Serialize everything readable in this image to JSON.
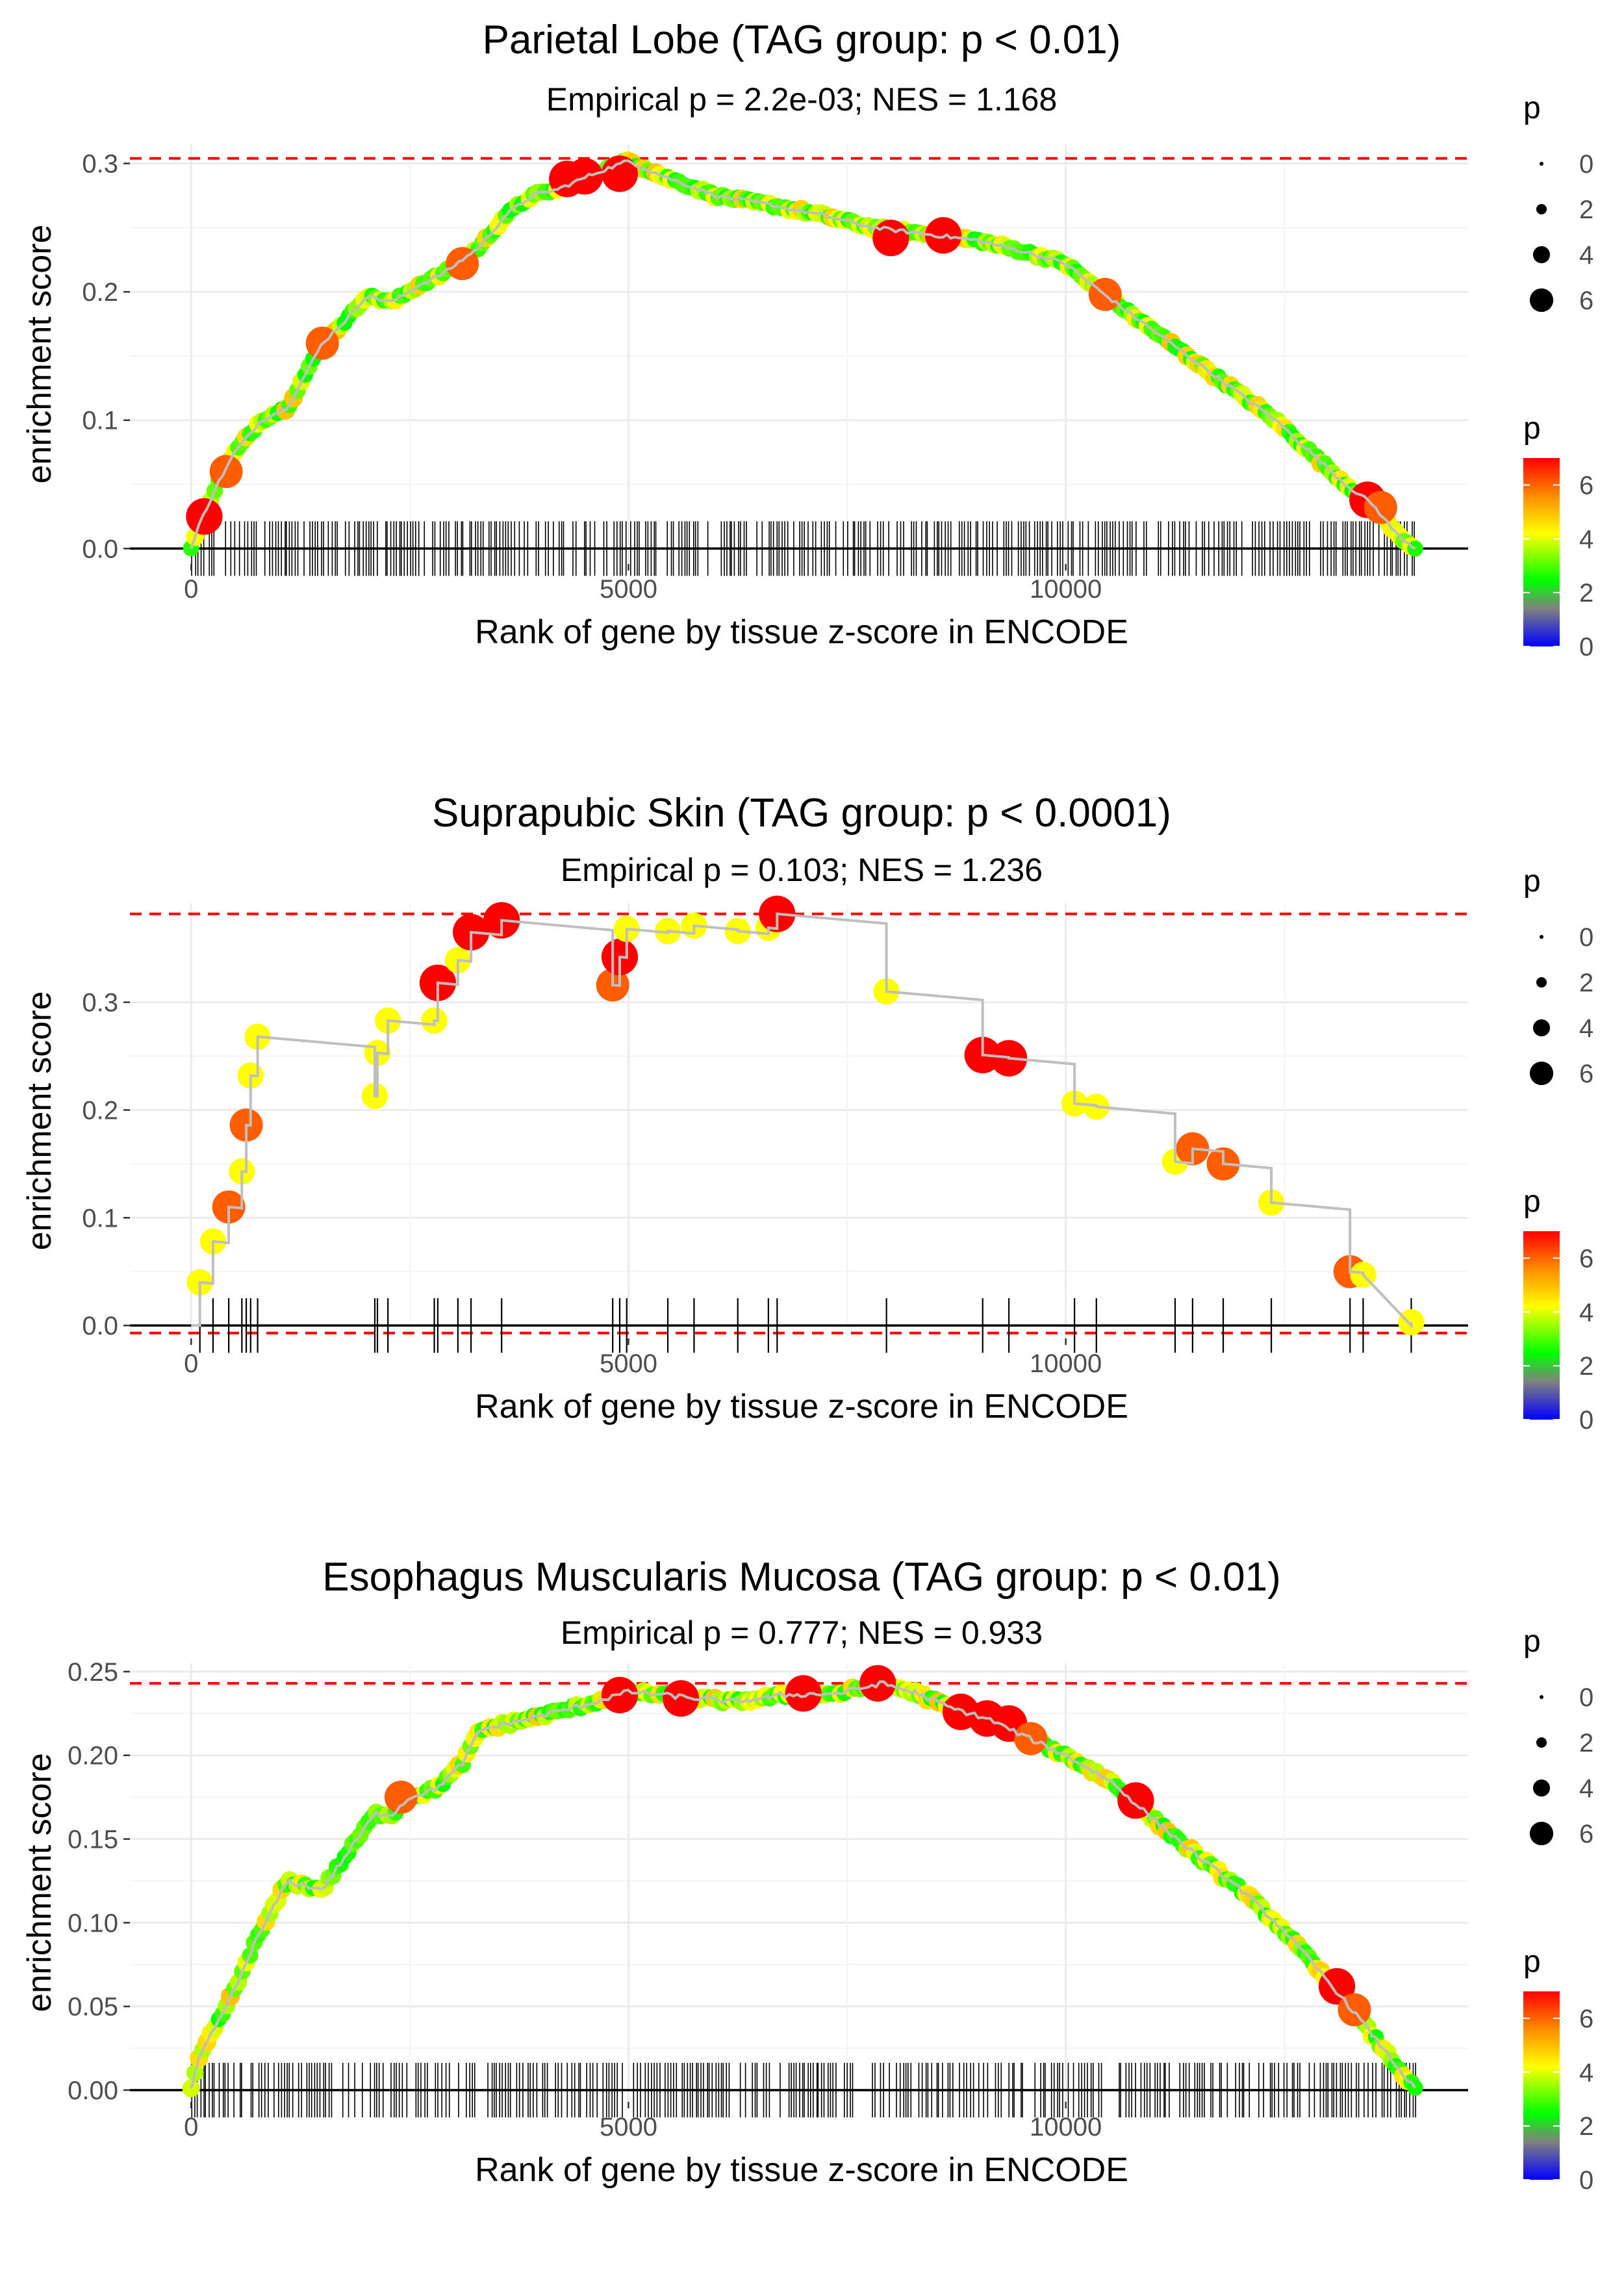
{
  "colors": {
    "threshold_line": "#ff0000",
    "running_line": "#bfbfbf",
    "grid": "#ebebeb",
    "rug": "#000000",
    "colorbar": [
      "#0000ff",
      "#808080",
      "#00ff00",
      "#ffff00",
      "#ff8c00",
      "#ff0000"
    ]
  },
  "legend": {
    "size_title": "p",
    "size_labels": [
      "0",
      "2",
      "4",
      "6"
    ],
    "color_title": "p",
    "color_labels": [
      "0",
      "2",
      "4",
      "6"
    ]
  },
  "chart_data": [
    {
      "type": "scatter",
      "title": "Parietal Lobe (TAG group: p < 0.01)",
      "subtitle": "Empirical p = 2.2e-03; NES = 1.168",
      "xlabel": "Rank of gene by tissue z-score in ENCODE",
      "ylabel": "enrichment score",
      "xlim": [
        -700,
        14600
      ],
      "ylim": [
        -0.012,
        0.315
      ],
      "xticks": [
        0,
        5000,
        10000
      ],
      "xtick_labels": [
        "0",
        "5000",
        "10000"
      ],
      "yticks": [
        0.0,
        0.1,
        0.2,
        0.3
      ],
      "ytick_labels": [
        "0.0",
        "0.1",
        "0.2",
        "0.3"
      ],
      "max_es": 0.304,
      "min_es": 0,
      "rug": "dense",
      "rug_range": [
        0,
        14000
      ],
      "curve": [
        [
          0,
          0
        ],
        [
          100,
          0.02
        ],
        [
          300,
          0.05
        ],
        [
          500,
          0.075
        ],
        [
          800,
          0.1
        ],
        [
          1100,
          0.11
        ],
        [
          1300,
          0.135
        ],
        [
          1500,
          0.16
        ],
        [
          1800,
          0.18
        ],
        [
          2000,
          0.197
        ],
        [
          2300,
          0.192
        ],
        [
          2600,
          0.205
        ],
        [
          2900,
          0.215
        ],
        [
          3300,
          0.235
        ],
        [
          3600,
          0.26
        ],
        [
          3900,
          0.275
        ],
        [
          4200,
          0.28
        ],
        [
          4600,
          0.292
        ],
        [
          5000,
          0.302
        ],
        [
          5400,
          0.29
        ],
        [
          6000,
          0.275
        ],
        [
          6600,
          0.268
        ],
        [
          7200,
          0.26
        ],
        [
          7800,
          0.25
        ],
        [
          8400,
          0.245
        ],
        [
          9000,
          0.24
        ],
        [
          9600,
          0.23
        ],
        [
          10000,
          0.222
        ],
        [
          10400,
          0.2
        ],
        [
          10800,
          0.18
        ],
        [
          11200,
          0.16
        ],
        [
          11600,
          0.14
        ],
        [
          12000,
          0.12
        ],
        [
          12400,
          0.1
        ],
        [
          12800,
          0.075
        ],
        [
          13200,
          0.05
        ],
        [
          13500,
          0.035
        ],
        [
          13800,
          0.01
        ],
        [
          14000,
          0
        ]
      ],
      "highlights": [
        [
          150,
          0.025,
          7
        ],
        [
          400,
          0.06,
          6
        ],
        [
          1500,
          0.16,
          6
        ],
        [
          3100,
          0.222,
          6
        ],
        [
          4300,
          0.288,
          7
        ],
        [
          4500,
          0.29,
          7
        ],
        [
          4900,
          0.292,
          7
        ],
        [
          8000,
          0.242,
          7
        ],
        [
          8600,
          0.244,
          7
        ],
        [
          10450,
          0.198,
          6
        ],
        [
          13450,
          0.038,
          7
        ],
        [
          13600,
          0.032,
          6
        ]
      ]
    },
    {
      "type": "scatter",
      "title": "Suprapubic Skin (TAG group: p < 0.0001)",
      "subtitle": "Empirical p = 0.103; NES = 1.236",
      "xlabel": "Rank of gene by tissue z-score in ENCODE",
      "ylabel": "enrichment score",
      "xlim": [
        -700,
        14600
      ],
      "ylim": [
        -0.012,
        0.392
      ],
      "xticks": [
        0,
        5000,
        10000
      ],
      "xtick_labels": [
        "0",
        "5000",
        "10000"
      ],
      "yticks": [
        0.0,
        0.1,
        0.2,
        0.3
      ],
      "ytick_labels": [
        "0.0",
        "0.1",
        "0.2",
        "0.3"
      ],
      "max_es": 0.382,
      "min_es": -0.007,
      "rug": "steps",
      "points": [
        [
          100,
          0.04,
          4
        ],
        [
          250,
          0.078,
          4
        ],
        [
          430,
          0.11,
          6
        ],
        [
          580,
          0.143,
          4
        ],
        [
          630,
          0.186,
          6
        ],
        [
          680,
          0.232,
          4
        ],
        [
          760,
          0.268,
          4
        ],
        [
          2100,
          0.213,
          4
        ],
        [
          2130,
          0.253,
          4
        ],
        [
          2250,
          0.283,
          4
        ],
        [
          2780,
          0.283,
          4
        ],
        [
          2820,
          0.318,
          7
        ],
        [
          3050,
          0.339,
          4
        ],
        [
          3200,
          0.365,
          7
        ],
        [
          3550,
          0.376,
          7
        ],
        [
          4820,
          0.316,
          6
        ],
        [
          4900,
          0.342,
          7
        ],
        [
          4980,
          0.368,
          4
        ],
        [
          5450,
          0.366,
          4
        ],
        [
          5750,
          0.371,
          4
        ],
        [
          6250,
          0.366,
          4
        ],
        [
          6600,
          0.369,
          4
        ],
        [
          6700,
          0.382,
          7
        ],
        [
          7950,
          0.31,
          4
        ],
        [
          9050,
          0.251,
          7
        ],
        [
          9350,
          0.248,
          7
        ],
        [
          10100,
          0.206,
          4
        ],
        [
          10350,
          0.203,
          4
        ],
        [
          11250,
          0.152,
          4
        ],
        [
          11450,
          0.164,
          6
        ],
        [
          11800,
          0.15,
          6
        ],
        [
          12350,
          0.114,
          4
        ],
        [
          13250,
          0.05,
          6
        ],
        [
          13400,
          0.047,
          4
        ],
        [
          13950,
          0.003,
          4
        ]
      ]
    },
    {
      "type": "scatter",
      "title": "Esophagus Muscularis Mucosa (TAG group: p < 0.01)",
      "subtitle": "Empirical p = 0.777; NES = 0.933",
      "xlabel": "Rank of gene by tissue z-score in ENCODE",
      "ylabel": "enrichment score",
      "xlim": [
        -700,
        14600
      ],
      "ylim": [
        -0.007,
        0.255
      ],
      "xticks": [
        0,
        5000,
        10000
      ],
      "xtick_labels": [
        "0",
        "5000",
        "10000"
      ],
      "yticks": [
        0.0,
        0.05,
        0.1,
        0.15,
        0.2,
        0.25
      ],
      "ytick_labels": [
        "0.00",
        "0.05",
        "0.10",
        "0.15",
        "0.20",
        "0.25"
      ],
      "max_es": 0.243,
      "min_es": 0,
      "rug": "dense",
      "rug_range": [
        0,
        14000
      ],
      "curve": [
        [
          0,
          0
        ],
        [
          100,
          0.02
        ],
        [
          300,
          0.04
        ],
        [
          500,
          0.06
        ],
        [
          700,
          0.085
        ],
        [
          900,
          0.105
        ],
        [
          1100,
          0.125
        ],
        [
          1300,
          0.122
        ],
        [
          1500,
          0.12
        ],
        [
          1700,
          0.135
        ],
        [
          1900,
          0.15
        ],
        [
          2100,
          0.165
        ],
        [
          2300,
          0.165
        ],
        [
          2500,
          0.175
        ],
        [
          2800,
          0.18
        ],
        [
          3100,
          0.195
        ],
        [
          3300,
          0.215
        ],
        [
          3700,
          0.22
        ],
        [
          4100,
          0.225
        ],
        [
          4500,
          0.23
        ],
        [
          5000,
          0.238
        ],
        [
          5600,
          0.235
        ],
        [
          6200,
          0.232
        ],
        [
          6800,
          0.236
        ],
        [
          7400,
          0.237
        ],
        [
          7900,
          0.243
        ],
        [
          8300,
          0.237
        ],
        [
          8700,
          0.228
        ],
        [
          9100,
          0.222
        ],
        [
          9500,
          0.212
        ],
        [
          10000,
          0.2
        ],
        [
          10500,
          0.185
        ],
        [
          11000,
          0.162
        ],
        [
          11500,
          0.14
        ],
        [
          12000,
          0.12
        ],
        [
          12500,
          0.095
        ],
        [
          13000,
          0.065
        ],
        [
          13400,
          0.04
        ],
        [
          13700,
          0.02
        ],
        [
          14000,
          0
        ]
      ],
      "highlights": [
        [
          2400,
          0.175,
          6
        ],
        [
          4900,
          0.236,
          7
        ],
        [
          5600,
          0.234,
          7
        ],
        [
          7000,
          0.237,
          7
        ],
        [
          7850,
          0.243,
          7
        ],
        [
          8800,
          0.226,
          7
        ],
        [
          9100,
          0.222,
          7
        ],
        [
          9350,
          0.219,
          7
        ],
        [
          9600,
          0.21,
          6
        ],
        [
          10800,
          0.173,
          7
        ],
        [
          13100,
          0.062,
          7
        ],
        [
          13300,
          0.048,
          6
        ]
      ]
    }
  ]
}
